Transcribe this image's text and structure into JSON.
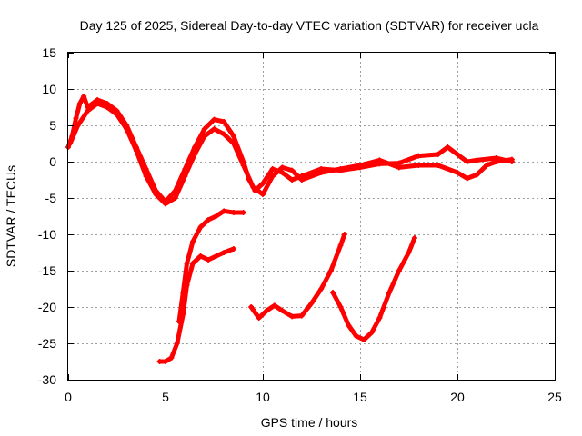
{
  "chart_data": {
    "type": "scatter",
    "title": "Day 125 of 2025, Sidereal Day-to-day VTEC variation (SDTVAR) for receiver ucla",
    "xlabel": "GPS time / hours",
    "ylabel": "SDTVAR / TECUs",
    "xlim": [
      0,
      25
    ],
    "ylim": [
      -30,
      15
    ],
    "xticks": [
      0,
      5,
      10,
      15,
      20,
      25
    ],
    "yticks": [
      -30,
      -25,
      -20,
      -15,
      -10,
      -5,
      0,
      5,
      10,
      15
    ],
    "xtick_labels": [
      "0",
      "5",
      "10",
      "15",
      "20",
      "25"
    ],
    "ytick_labels": [
      "-30",
      "-25",
      "-20",
      "-15",
      "-10",
      "-5",
      "0",
      "5",
      "10",
      "15"
    ],
    "grid": true,
    "color": "#ff0000",
    "series": [
      {
        "name": "track-main-a",
        "points": [
          [
            0,
            2
          ],
          [
            0.2,
            3.5
          ],
          [
            0.4,
            6
          ],
          [
            0.6,
            8
          ],
          [
            0.8,
            9
          ],
          [
            1.0,
            7.5
          ],
          [
            1.5,
            8.5
          ],
          [
            2.0,
            8
          ],
          [
            2.5,
            7
          ],
          [
            3.0,
            5
          ],
          [
            3.5,
            2
          ],
          [
            4.0,
            -1
          ],
          [
            4.5,
            -4
          ],
          [
            5.0,
            -5.5
          ],
          [
            5.5,
            -4
          ],
          [
            6.0,
            -1
          ],
          [
            6.5,
            2
          ],
          [
            7.0,
            4.5
          ],
          [
            7.5,
            5.8
          ],
          [
            8.0,
            5.5
          ],
          [
            8.5,
            3.5
          ],
          [
            9.0,
            0
          ],
          [
            9.3,
            -2.5
          ],
          [
            9.6,
            -4
          ],
          [
            10.0,
            -3
          ],
          [
            10.5,
            -1
          ],
          [
            11.0,
            -1.5
          ],
          [
            11.5,
            -2.5
          ],
          [
            12.0,
            -2
          ],
          [
            13.0,
            -1
          ],
          [
            14.0,
            -1.2
          ],
          [
            15.0,
            -0.8
          ],
          [
            16.0,
            -0.3
          ],
          [
            17.0,
            -0.2
          ],
          [
            18.0,
            0.8
          ],
          [
            19.0,
            1
          ],
          [
            19.5,
            2
          ],
          [
            20.0,
            1
          ],
          [
            20.5,
            0
          ],
          [
            21.0,
            0.2
          ],
          [
            22.0,
            0.5
          ],
          [
            22.8,
            0
          ]
        ]
      },
      {
        "name": "track-main-b",
        "points": [
          [
            0.1,
            2.5
          ],
          [
            0.5,
            5
          ],
          [
            1.0,
            7
          ],
          [
            1.5,
            8
          ],
          [
            2.0,
            7.5
          ],
          [
            2.5,
            6.5
          ],
          [
            3.0,
            4.5
          ],
          [
            3.5,
            1.5
          ],
          [
            4.0,
            -2
          ],
          [
            4.5,
            -4.5
          ],
          [
            5.0,
            -5.8
          ],
          [
            5.5,
            -5
          ],
          [
            6.0,
            -2
          ],
          [
            6.5,
            1
          ],
          [
            7.0,
            3.5
          ],
          [
            7.5,
            4.5
          ],
          [
            8.0,
            3.8
          ],
          [
            8.5,
            2.5
          ],
          [
            9.0,
            -0.5
          ],
          [
            9.5,
            -3.5
          ],
          [
            10.0,
            -4.5
          ],
          [
            10.5,
            -2
          ],
          [
            11.0,
            -0.8
          ],
          [
            11.5,
            -1.2
          ],
          [
            12.0,
            -2.5
          ],
          [
            13.0,
            -1.5
          ],
          [
            14.0,
            -1
          ],
          [
            15.0,
            -0.5
          ],
          [
            16.0,
            0.2
          ],
          [
            17.0,
            -0.8
          ],
          [
            18.0,
            -0.5
          ],
          [
            19.0,
            -0.5
          ],
          [
            20.0,
            -1.5
          ],
          [
            20.5,
            -2.3
          ],
          [
            21.0,
            -1.8
          ],
          [
            21.5,
            -0.5
          ],
          [
            22.0,
            0
          ],
          [
            22.8,
            0.3
          ]
        ]
      },
      {
        "name": "track-lower-1",
        "points": [
          [
            4.7,
            -27.5
          ],
          [
            5.0,
            -27.5
          ],
          [
            5.3,
            -27
          ],
          [
            5.6,
            -25
          ],
          [
            5.9,
            -21
          ],
          [
            6.1,
            -17
          ],
          [
            6.4,
            -14
          ],
          [
            6.8,
            -13
          ],
          [
            7.2,
            -13.5
          ],
          [
            7.6,
            -13
          ],
          [
            8.0,
            -12.5
          ],
          [
            8.5,
            -12
          ]
        ]
      },
      {
        "name": "track-lower-2",
        "points": [
          [
            5.7,
            -22
          ],
          [
            5.9,
            -18
          ],
          [
            6.1,
            -14
          ],
          [
            6.4,
            -11
          ],
          [
            6.8,
            -9
          ],
          [
            7.2,
            -8
          ],
          [
            7.6,
            -7.5
          ],
          [
            8.0,
            -6.8
          ],
          [
            8.5,
            -7
          ],
          [
            9.0,
            -7
          ]
        ]
      },
      {
        "name": "track-lower-3",
        "points": [
          [
            9.4,
            -20
          ],
          [
            9.8,
            -21.5
          ],
          [
            10.2,
            -20.5
          ],
          [
            10.6,
            -19.8
          ],
          [
            11.0,
            -20.5
          ],
          [
            11.5,
            -21.3
          ],
          [
            12.0,
            -21.2
          ],
          [
            12.5,
            -19.5
          ],
          [
            13.0,
            -17.5
          ],
          [
            13.5,
            -15
          ],
          [
            14.0,
            -11.5
          ],
          [
            14.2,
            -10
          ]
        ]
      },
      {
        "name": "track-lower-4",
        "points": [
          [
            13.6,
            -18
          ],
          [
            14.0,
            -20
          ],
          [
            14.4,
            -22.5
          ],
          [
            14.8,
            -24
          ],
          [
            15.2,
            -24.5
          ],
          [
            15.6,
            -23.5
          ],
          [
            16.0,
            -21.5
          ],
          [
            16.5,
            -18
          ],
          [
            17.0,
            -15
          ],
          [
            17.5,
            -12.5
          ],
          [
            17.8,
            -10.5
          ]
        ]
      }
    ]
  }
}
